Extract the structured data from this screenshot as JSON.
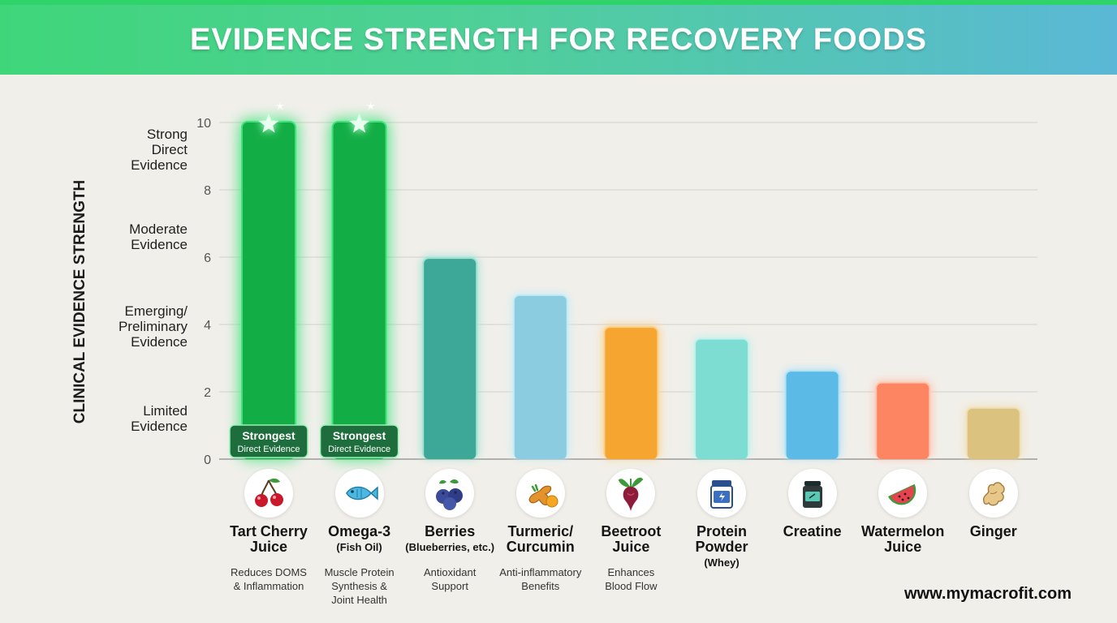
{
  "title": "EVIDENCE STRENGTH FOR RECOVERY FOODS",
  "footer": "www.mymacrofit.com",
  "bands": [
    {
      "label": "Strong\nDirect\nEvidence",
      "level": 9.2
    },
    {
      "label": "Moderate\nEvidence",
      "level": 6.6
    },
    {
      "label": "Emerging/\nPreliminary\nEvidence",
      "level": 3.95
    },
    {
      "label": "Limited\nEvidence",
      "level": 1.2
    }
  ],
  "badge": {
    "line1": "Strongest",
    "line2": "Direct Evidence"
  },
  "chart_data": {
    "type": "bar",
    "ylabel": "CLINICAL EVIDENCE STRENGTH",
    "ylim": [
      0,
      10
    ],
    "yticks": [
      0,
      2,
      4,
      6,
      8,
      10
    ],
    "grid": true,
    "bars": [
      {
        "name": "Tart Cherry",
        "name2": "Juice",
        "sub": "",
        "note": "Reduces DOMS\n& Inflammation",
        "value": 10,
        "color": "#12ad45",
        "glow": "#3de27a",
        "highlight": true,
        "icon": "cherry-icon"
      },
      {
        "name": "Omega-3",
        "name2": "",
        "sub": "(Fish Oil)",
        "note": "Muscle Protein\nSynthesis &\nJoint Health",
        "value": 10,
        "color": "#12ad45",
        "glow": "#3de27a",
        "highlight": true,
        "icon": "fish-icon"
      },
      {
        "name": "Berries",
        "name2": "",
        "sub": "(Blueberries, etc.)",
        "note": "Antioxidant\nSupport",
        "value": 5.95,
        "color": "#3ea898",
        "glow": "#9fe2d3",
        "highlight": false,
        "icon": "blueberry-icon"
      },
      {
        "name": "Turmeric/",
        "name2": "Curcumin",
        "sub": "",
        "note": "Anti-inflammatory\nBenefits",
        "value": 4.85,
        "color": "#8ccce0",
        "glow": "#c5ecf5",
        "highlight": false,
        "icon": "turmeric-icon"
      },
      {
        "name": "Beetroot",
        "name2": "Juice",
        "sub": "",
        "note": "Enhances\nBlood Flow",
        "value": 3.9,
        "color": "#f6a531",
        "glow": "#fbd08a",
        "highlight": false,
        "icon": "beetroot-icon"
      },
      {
        "name": "Protein",
        "name2": "Powder",
        "sub": "(Whey)",
        "note": "",
        "value": 3.55,
        "color": "#7dddd2",
        "glow": "#c1f0ea",
        "highlight": false,
        "icon": "protein-tub-icon"
      },
      {
        "name": "Creatine",
        "name2": "",
        "sub": "",
        "note": "",
        "value": 2.6,
        "color": "#5bbbe6",
        "glow": "#b3e2f5",
        "highlight": false,
        "icon": "creatine-jar-icon"
      },
      {
        "name": "Watermelon",
        "name2": "Juice",
        "sub": "",
        "note": "",
        "value": 2.25,
        "color": "#fd8561",
        "glow": "#fdc3ae",
        "highlight": false,
        "icon": "watermelon-icon"
      },
      {
        "name": "Ginger",
        "name2": "",
        "sub": "",
        "note": "",
        "value": 1.5,
        "color": "#dcc27f",
        "glow": "#efe0b8",
        "highlight": false,
        "icon": "ginger-icon"
      }
    ]
  }
}
